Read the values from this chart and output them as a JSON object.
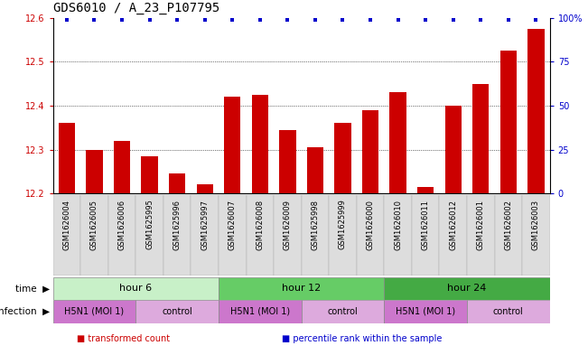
{
  "title": "GDS6010 / A_23_P107795",
  "samples": [
    "GSM1626004",
    "GSM1626005",
    "GSM1626006",
    "GSM1625995",
    "GSM1625996",
    "GSM1625997",
    "GSM1626007",
    "GSM1626008",
    "GSM1626009",
    "GSM1625998",
    "GSM1625999",
    "GSM1626000",
    "GSM1626010",
    "GSM1626011",
    "GSM1626012",
    "GSM1626001",
    "GSM1626002",
    "GSM1626003"
  ],
  "bar_values": [
    12.36,
    12.3,
    12.32,
    12.285,
    12.245,
    12.22,
    12.42,
    12.425,
    12.345,
    12.305,
    12.36,
    12.39,
    12.43,
    12.215,
    12.4,
    12.45,
    12.525,
    12.575
  ],
  "bar_color": "#cc0000",
  "percentile_color": "#0000cc",
  "ylim_left": [
    12.2,
    12.6
  ],
  "ylim_right": [
    0,
    100
  ],
  "yticks_left": [
    12.2,
    12.3,
    12.4,
    12.5,
    12.6
  ],
  "ytick_labels_left": [
    "12.2",
    "12.3",
    "12.4",
    "12.5",
    "12.6"
  ],
  "yticks_right": [
    0,
    25,
    50,
    75,
    100
  ],
  "ytick_labels_right": [
    "0",
    "25",
    "50",
    "75",
    "100%"
  ],
  "time_groups": [
    {
      "label": "hour 6",
      "start": 0,
      "end": 6,
      "color": "#c8f0c8"
    },
    {
      "label": "hour 12",
      "start": 6,
      "end": 12,
      "color": "#66cc66"
    },
    {
      "label": "hour 24",
      "start": 12,
      "end": 18,
      "color": "#44aa44"
    }
  ],
  "infection_groups": [
    {
      "label": "H5N1 (MOI 1)",
      "start": 0,
      "end": 3,
      "color": "#cc77cc"
    },
    {
      "label": "control",
      "start": 3,
      "end": 6,
      "color": "#ddaadd"
    },
    {
      "label": "H5N1 (MOI 1)",
      "start": 6,
      "end": 9,
      "color": "#cc77cc"
    },
    {
      "label": "control",
      "start": 9,
      "end": 12,
      "color": "#ddaadd"
    },
    {
      "label": "H5N1 (MOI 1)",
      "start": 12,
      "end": 15,
      "color": "#cc77cc"
    },
    {
      "label": "control",
      "start": 15,
      "end": 18,
      "color": "#ddaadd"
    }
  ],
  "legend_items": [
    {
      "label": "transformed count",
      "color": "#cc0000"
    },
    {
      "label": "percentile rank within the sample",
      "color": "#0000cc"
    }
  ],
  "background_color": "#ffffff",
  "title_fontsize": 10,
  "tick_fontsize": 7,
  "bar_width": 0.6,
  "sample_bg_color": "#dddddd",
  "sample_label_fontsize": 6.0
}
